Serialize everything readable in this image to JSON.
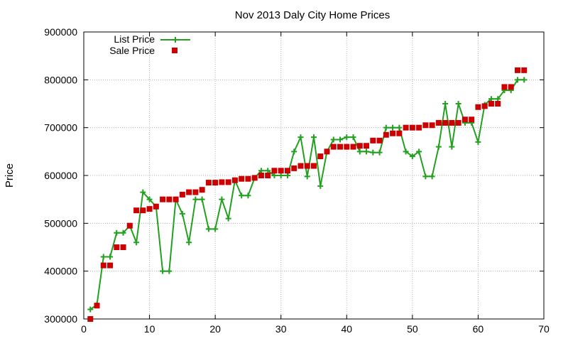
{
  "chart_data": {
    "type": "scatter",
    "title": "Nov 2013 Daly City Home Prices",
    "xlabel": "",
    "ylabel": "Price",
    "xlim": [
      0,
      70
    ],
    "ylim": [
      300000,
      900000
    ],
    "x_ticks": [
      0,
      10,
      20,
      30,
      40,
      50,
      60,
      70
    ],
    "y_ticks": [
      300000,
      400000,
      500000,
      600000,
      700000,
      800000,
      900000
    ],
    "grid": true,
    "legend_position": "top-left",
    "series": [
      {
        "name": "List Price",
        "style": "line+cross",
        "color": "#22a01f",
        "x": [
          1,
          2,
          3,
          4,
          5,
          6,
          7,
          8,
          9,
          10,
          11,
          12,
          13,
          14,
          15,
          16,
          17,
          18,
          19,
          20,
          21,
          22,
          23,
          24,
          25,
          26,
          27,
          28,
          29,
          30,
          31,
          32,
          33,
          34,
          35,
          36,
          37,
          38,
          39,
          40,
          41,
          42,
          43,
          44,
          45,
          46,
          47,
          48,
          49,
          50,
          51,
          52,
          53,
          54,
          55,
          56,
          57,
          58,
          59,
          60,
          61,
          62,
          63,
          64,
          65,
          66,
          67
        ],
        "values": [
          320000,
          330000,
          430000,
          430000,
          480000,
          480000,
          495000,
          460000,
          565000,
          550000,
          535000,
          400000,
          400000,
          550000,
          520000,
          460000,
          550000,
          550000,
          488000,
          488000,
          550000,
          510000,
          590000,
          558000,
          558000,
          595000,
          610000,
          610000,
          600000,
          600000,
          600000,
          650000,
          680000,
          598000,
          680000,
          578000,
          650000,
          675000,
          675000,
          680000,
          680000,
          650000,
          650000,
          648000,
          648000,
          700000,
          700000,
          700000,
          650000,
          640000,
          650000,
          598000,
          598000,
          660000,
          750000,
          660000,
          750000,
          710000,
          710000,
          670000,
          748000,
          760000,
          760000,
          778000,
          778000,
          800000,
          800000
        ]
      },
      {
        "name": "Sale Price",
        "style": "square",
        "color": "#cc0000",
        "x": [
          1,
          2,
          3,
          4,
          5,
          6,
          7,
          8,
          9,
          10,
          11,
          12,
          13,
          14,
          15,
          16,
          17,
          18,
          19,
          20,
          21,
          22,
          23,
          24,
          25,
          26,
          27,
          28,
          29,
          30,
          31,
          32,
          33,
          34,
          35,
          36,
          37,
          38,
          39,
          40,
          41,
          42,
          43,
          44,
          45,
          46,
          47,
          48,
          49,
          50,
          51,
          52,
          53,
          54,
          55,
          56,
          57,
          58,
          59,
          60,
          61,
          62,
          63,
          64,
          65,
          66,
          67
        ],
        "values": [
          300000,
          328000,
          412000,
          412000,
          450000,
          450000,
          495000,
          527000,
          527000,
          530000,
          535000,
          550000,
          550000,
          550000,
          560000,
          565000,
          565000,
          570000,
          585000,
          585000,
          586000,
          586000,
          590000,
          593000,
          593000,
          595000,
          600000,
          600000,
          610000,
          610000,
          610000,
          615000,
          620000,
          620000,
          620000,
          640000,
          650000,
          660000,
          660000,
          660000,
          660000,
          662000,
          662000,
          673000,
          673000,
          685000,
          688000,
          688000,
          700000,
          700000,
          700000,
          705000,
          705000,
          710000,
          710000,
          710000,
          710000,
          717000,
          717000,
          743000,
          745000,
          750000,
          750000,
          785000,
          785000,
          820000,
          820000
        ]
      }
    ]
  }
}
